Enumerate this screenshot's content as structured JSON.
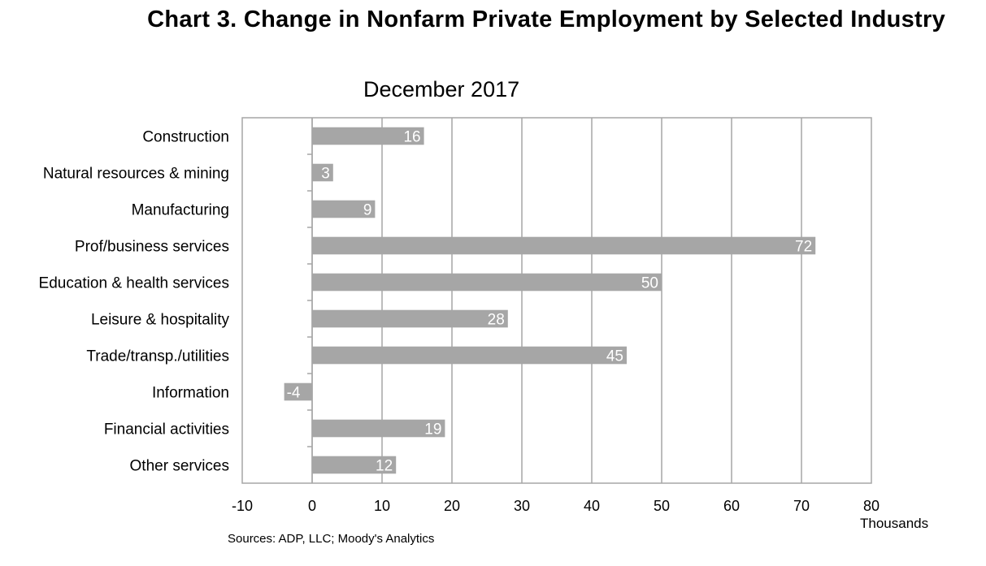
{
  "chart_data": {
    "type": "bar",
    "orientation": "horizontal",
    "title": "Chart 3. Change in Nonfarm Private Employment by Selected Industry",
    "subtitle": "December 2017",
    "categories": [
      "Construction",
      "Natural resources & mining",
      "Manufacturing",
      "Prof/business services",
      "Education & health services",
      "Leisure & hospitality",
      "Trade/transp./utilities",
      "Information",
      "Financial activities",
      "Other services"
    ],
    "values": [
      16,
      3,
      9,
      72,
      50,
      28,
      45,
      -4,
      19,
      12
    ],
    "data_labels": [
      "16",
      "3",
      "9",
      "72",
      "50",
      "28",
      "45",
      "-4",
      "19",
      "12"
    ],
    "xlim": [
      -10,
      80
    ],
    "xticks": [
      "-10",
      "0",
      "10",
      "20",
      "30",
      "40",
      "50",
      "60",
      "70",
      "80"
    ],
    "units_label": "Thousands",
    "grid": "vertical",
    "legend": "none",
    "source": "Sources: ADP, LLC; Moody's Analytics",
    "colors": {
      "bar": "#a6a6a6",
      "grid": "#a6a6a6",
      "label_text": "#ffffff"
    }
  }
}
